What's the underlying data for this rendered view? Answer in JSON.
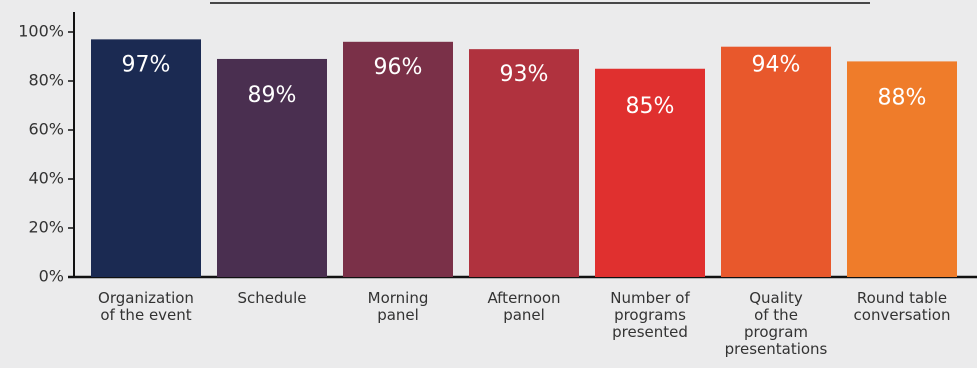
{
  "chart_data": {
    "type": "bar",
    "categories": [
      [
        "Organization",
        "of the event"
      ],
      [
        "Schedule"
      ],
      [
        "Morning",
        "panel"
      ],
      [
        "Afternoon",
        "panel"
      ],
      [
        "Number of",
        "programs",
        "presented"
      ],
      [
        "Quality",
        "of the",
        "program",
        "presentations"
      ],
      [
        "Round table",
        "conversation"
      ]
    ],
    "values": [
      97,
      89,
      96,
      93,
      85,
      94,
      88
    ],
    "value_labels": [
      "97%",
      "89%",
      "96%",
      "93%",
      "85%",
      "94%",
      "88%"
    ],
    "bar_colors": [
      "#1b2a52",
      "#4a2f50",
      "#7a3048",
      "#b0323e",
      "#e0302f",
      "#e8582c",
      "#ef7c2a"
    ],
    "yticks": [
      0,
      20,
      40,
      60,
      80,
      100
    ],
    "ytick_labels": [
      "0%",
      "20%",
      "40%",
      "60%",
      "80%",
      "100%"
    ],
    "ylim": [
      0,
      100
    ],
    "title": "",
    "xlabel": "",
    "ylabel": "",
    "grid": false,
    "axis_color": "#111111",
    "label_color": "#333333",
    "background": "#ebebec"
  }
}
